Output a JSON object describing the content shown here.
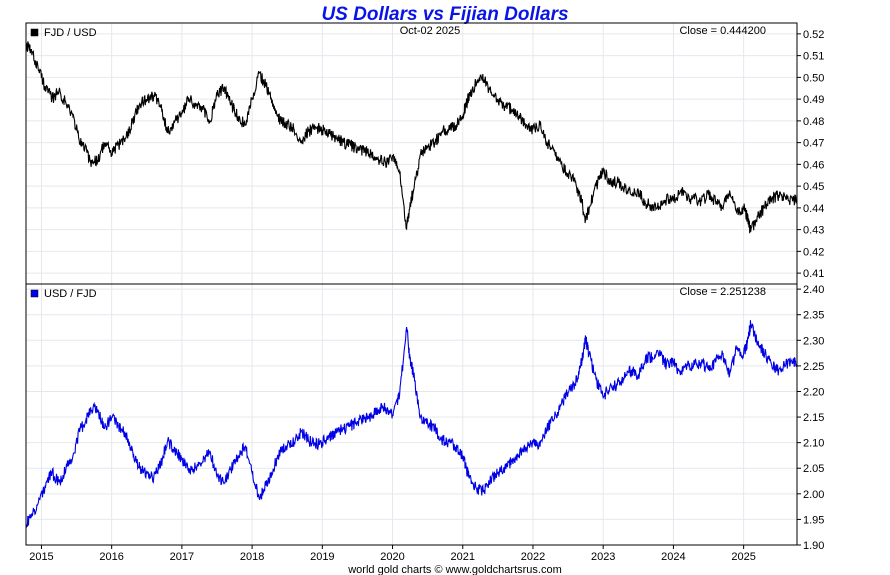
{
  "chart_data": {
    "type": "line",
    "title": "US Dollars vs Fijian Dollars",
    "date_label": "Oct-02  2025",
    "footer": "world gold charts © www.goldchartsrus.com",
    "x_ticks": [
      "2015",
      "2016",
      "2017",
      "2018",
      "2019",
      "2020",
      "2021",
      "2022",
      "2023",
      "2024",
      "2025"
    ],
    "x_range": [
      2014.78,
      2025.76
    ],
    "grid": true,
    "panels": [
      {
        "series_name": "FJD / USD",
        "color": "#000000",
        "close_label": "Close = 0.444200",
        "ylim": [
          0.405,
          0.525
        ],
        "y_ticks": [
          "0.41",
          "0.42",
          "0.43",
          "0.44",
          "0.45",
          "0.46",
          "0.47",
          "0.48",
          "0.49",
          "0.50",
          "0.51",
          "0.52"
        ],
        "y_tick_values": [
          0.41,
          0.42,
          0.43,
          0.44,
          0.45,
          0.46,
          0.47,
          0.48,
          0.49,
          0.5,
          0.51,
          0.52
        ],
        "x": [
          2014.78,
          2014.85,
          2014.95,
          2015.05,
          2015.15,
          2015.25,
          2015.35,
          2015.45,
          2015.55,
          2015.62,
          2015.7,
          2015.8,
          2015.9,
          2016.0,
          2016.1,
          2016.2,
          2016.3,
          2016.4,
          2016.5,
          2016.6,
          2016.7,
          2016.8,
          2016.9,
          2017.0,
          2017.1,
          2017.2,
          2017.3,
          2017.4,
          2017.5,
          2017.6,
          2017.7,
          2017.8,
          2017.9,
          2018.0,
          2018.1,
          2018.2,
          2018.3,
          2018.4,
          2018.5,
          2018.6,
          2018.7,
          2018.8,
          2018.9,
          2019.0,
          2019.1,
          2019.2,
          2019.3,
          2019.4,
          2019.5,
          2019.6,
          2019.7,
          2019.8,
          2019.9,
          2020.0,
          2020.1,
          2020.2,
          2020.25,
          2020.3,
          2020.4,
          2020.5,
          2020.6,
          2020.7,
          2020.8,
          2020.9,
          2021.0,
          2021.05,
          2021.1,
          2021.2,
          2021.3,
          2021.4,
          2021.5,
          2021.6,
          2021.7,
          2021.8,
          2021.9,
          2022.0,
          2022.1,
          2022.2,
          2022.3,
          2022.4,
          2022.5,
          2022.6,
          2022.7,
          2022.75,
          2022.8,
          2022.9,
          2023.0,
          2023.1,
          2023.2,
          2023.3,
          2023.4,
          2023.5,
          2023.6,
          2023.7,
          2023.8,
          2023.9,
          2024.0,
          2024.1,
          2024.2,
          2024.3,
          2024.4,
          2024.5,
          2024.6,
          2024.7,
          2024.8,
          2024.9,
          2025.0,
          2025.05,
          2025.1,
          2025.2,
          2025.3,
          2025.4,
          2025.5,
          2025.6,
          2025.7,
          2025.76
        ],
        "y": [
          0.515,
          0.512,
          0.505,
          0.496,
          0.49,
          0.494,
          0.488,
          0.482,
          0.47,
          0.468,
          0.461,
          0.462,
          0.47,
          0.465,
          0.469,
          0.472,
          0.48,
          0.488,
          0.49,
          0.492,
          0.486,
          0.475,
          0.48,
          0.483,
          0.49,
          0.487,
          0.485,
          0.48,
          0.492,
          0.495,
          0.488,
          0.482,
          0.478,
          0.49,
          0.502,
          0.496,
          0.488,
          0.48,
          0.478,
          0.476,
          0.471,
          0.475,
          0.477,
          0.476,
          0.474,
          0.472,
          0.47,
          0.469,
          0.467,
          0.466,
          0.465,
          0.462,
          0.461,
          0.464,
          0.456,
          0.43,
          0.442,
          0.448,
          0.465,
          0.468,
          0.47,
          0.475,
          0.476,
          0.478,
          0.482,
          0.488,
          0.492,
          0.498,
          0.499,
          0.493,
          0.49,
          0.487,
          0.485,
          0.482,
          0.478,
          0.476,
          0.478,
          0.47,
          0.466,
          0.46,
          0.455,
          0.452,
          0.442,
          0.434,
          0.44,
          0.45,
          0.457,
          0.452,
          0.452,
          0.449,
          0.446,
          0.448,
          0.442,
          0.441,
          0.44,
          0.444,
          0.443,
          0.448,
          0.444,
          0.444,
          0.443,
          0.446,
          0.443,
          0.44,
          0.448,
          0.438,
          0.44,
          0.436,
          0.429,
          0.436,
          0.44,
          0.444,
          0.446,
          0.444,
          0.443,
          0.444
        ]
      },
      {
        "series_name": "USD / FJD",
        "color": "#0000e6",
        "close_label": "Close = 2.251238",
        "ylim": [
          1.9,
          2.41
        ],
        "y_ticks": [
          "1.90",
          "1.95",
          "2.00",
          "2.05",
          "2.10",
          "2.15",
          "2.20",
          "2.25",
          "2.30",
          "2.35",
          "2.40"
        ],
        "y_tick_values": [
          1.9,
          1.95,
          2.0,
          2.05,
          2.1,
          2.15,
          2.2,
          2.25,
          2.3,
          2.35,
          2.4
        ],
        "x": [
          2014.78,
          2014.85,
          2014.95,
          2015.05,
          2015.15,
          2015.25,
          2015.35,
          2015.45,
          2015.55,
          2015.62,
          2015.7,
          2015.8,
          2015.9,
          2016.0,
          2016.1,
          2016.2,
          2016.3,
          2016.4,
          2016.5,
          2016.6,
          2016.7,
          2016.8,
          2016.9,
          2017.0,
          2017.1,
          2017.2,
          2017.3,
          2017.4,
          2017.5,
          2017.6,
          2017.7,
          2017.8,
          2017.9,
          2018.0,
          2018.1,
          2018.2,
          2018.3,
          2018.4,
          2018.5,
          2018.6,
          2018.7,
          2018.8,
          2018.9,
          2019.0,
          2019.1,
          2019.2,
          2019.3,
          2019.4,
          2019.5,
          2019.6,
          2019.7,
          2019.8,
          2019.9,
          2020.0,
          2020.1,
          2020.2,
          2020.25,
          2020.3,
          2020.4,
          2020.5,
          2020.6,
          2020.7,
          2020.8,
          2020.9,
          2021.0,
          2021.05,
          2021.1,
          2021.2,
          2021.3,
          2021.4,
          2021.5,
          2021.6,
          2021.7,
          2021.8,
          2021.9,
          2022.0,
          2022.1,
          2022.2,
          2022.3,
          2022.4,
          2022.5,
          2022.6,
          2022.7,
          2022.75,
          2022.8,
          2022.9,
          2023.0,
          2023.1,
          2023.2,
          2023.3,
          2023.4,
          2023.5,
          2023.6,
          2023.7,
          2023.8,
          2023.9,
          2024.0,
          2024.1,
          2024.2,
          2024.3,
          2024.4,
          2024.5,
          2024.6,
          2024.7,
          2024.8,
          2024.9,
          2025.0,
          2025.05,
          2025.1,
          2025.2,
          2025.3,
          2025.4,
          2025.5,
          2025.6,
          2025.7,
          2025.76
        ],
        "y": [
          1.942,
          1.953,
          1.98,
          2.016,
          2.041,
          2.024,
          2.049,
          2.075,
          2.128,
          2.137,
          2.169,
          2.165,
          2.128,
          2.15,
          2.132,
          2.119,
          2.083,
          2.049,
          2.041,
          2.033,
          2.058,
          2.105,
          2.083,
          2.07,
          2.041,
          2.053,
          2.062,
          2.083,
          2.033,
          2.02,
          2.049,
          2.075,
          2.092,
          2.041,
          1.992,
          2.016,
          2.049,
          2.083,
          2.092,
          2.101,
          2.123,
          2.105,
          2.096,
          2.101,
          2.11,
          2.119,
          2.128,
          2.132,
          2.141,
          2.146,
          2.151,
          2.165,
          2.169,
          2.155,
          2.193,
          2.326,
          2.262,
          2.232,
          2.151,
          2.137,
          2.128,
          2.105,
          2.101,
          2.092,
          2.075,
          2.049,
          2.033,
          2.008,
          2.004,
          2.028,
          2.041,
          2.053,
          2.062,
          2.075,
          2.092,
          2.101,
          2.092,
          2.128,
          2.146,
          2.174,
          2.198,
          2.212,
          2.262,
          2.304,
          2.273,
          2.222,
          2.188,
          2.212,
          2.212,
          2.227,
          2.242,
          2.232,
          2.262,
          2.268,
          2.273,
          2.252,
          2.257,
          2.232,
          2.252,
          2.252,
          2.257,
          2.242,
          2.257,
          2.273,
          2.232,
          2.283,
          2.273,
          2.294,
          2.331,
          2.294,
          2.273,
          2.252,
          2.242,
          2.252,
          2.257,
          2.251
        ]
      }
    ]
  }
}
